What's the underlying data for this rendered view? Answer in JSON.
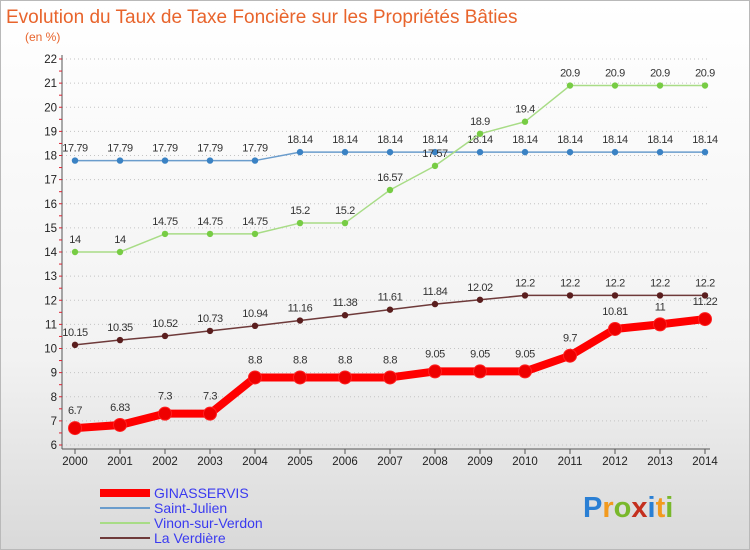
{
  "chart_data": {
    "type": "line",
    "title": "Evolution du Taux de Taxe Foncière sur les Propriétés Bâties",
    "subtitle": "(en %)",
    "categories": [
      "2000",
      "2001",
      "2002",
      "2003",
      "2004",
      "2005",
      "2006",
      "2007",
      "2008",
      "2009",
      "2010",
      "2011",
      "2012",
      "2013",
      "2014"
    ],
    "y_ticks": [
      "6",
      "7",
      "8",
      "9",
      "10",
      "11",
      "12",
      "13",
      "14",
      "15",
      "16",
      "17",
      "18",
      "19",
      "20",
      "21",
      "22"
    ],
    "ylim": [
      6,
      22
    ],
    "grid": "horizontal dotted",
    "legend_position": "bottom-left",
    "series": [
      {
        "name": "Saint-Julien",
        "color": "#6a9ccc",
        "marker_color": "#3a82c4",
        "values": [
          17.79,
          17.79,
          17.79,
          17.79,
          17.79,
          18.14,
          18.14,
          18.14,
          18.14,
          18.14,
          18.14,
          18.14,
          18.14,
          18.14,
          18.14
        ],
        "labels": [
          "17.79",
          "17.79",
          "17.79",
          "17.79",
          "17.79",
          "18.14",
          "18.14",
          "18.14",
          "18.14",
          "18.14",
          "18.14",
          "18.14",
          "18.14",
          "18.14",
          "18.14"
        ]
      },
      {
        "name": "Vinon-sur-Verdon",
        "color": "#a8dc86",
        "marker_color": "#77cc44",
        "values": [
          14,
          14,
          14.75,
          14.75,
          14.75,
          15.2,
          15.2,
          16.57,
          17.57,
          18.9,
          19.4,
          20.9,
          20.9,
          20.9,
          20.9
        ],
        "labels": [
          "14",
          "14",
          "14.75",
          "14.75",
          "14.75",
          "15.2",
          "15.2",
          "16.57",
          "17.57",
          "18.9",
          "19.4",
          "20.9",
          "20.9",
          "20.9",
          "20.9"
        ]
      },
      {
        "name": "La Verdière",
        "color": "#6e3a3a",
        "marker_color": "#5a1e1e",
        "values": [
          10.15,
          10.35,
          10.52,
          10.73,
          10.94,
          11.16,
          11.38,
          11.61,
          11.84,
          12.02,
          12.2,
          12.2,
          12.2,
          12.2,
          12.2
        ],
        "labels": [
          "10.15",
          "10.35",
          "10.52",
          "10.73",
          "10.94",
          "11.16",
          "11.38",
          "11.61",
          "11.84",
          "12.02",
          "12.2",
          "12.2",
          "12.2",
          "12.2",
          "12.2"
        ]
      },
      {
        "name": "GINASSERVIS",
        "color": "#ff0000",
        "marker_color": "#ee0000",
        "values": [
          6.7,
          6.83,
          7.3,
          7.3,
          8.8,
          8.8,
          8.8,
          8.8,
          9.05,
          9.05,
          9.05,
          9.7,
          10.81,
          11,
          11.22
        ],
        "labels": [
          "6.7",
          "6.83",
          "7.3",
          "7.3",
          "8.8",
          "8.8",
          "8.8",
          "8.8",
          "9.05",
          "9.05",
          "9.05",
          "9.7",
          "10.81",
          "11",
          "11.22"
        ]
      }
    ],
    "legend_order": [
      "GINASSERVIS",
      "Saint-Julien",
      "Vinon-sur-Verdon",
      "La Verdière"
    ]
  },
  "logo": {
    "letters": [
      "P",
      "r",
      "o",
      "x",
      "i",
      "t",
      "i"
    ],
    "colors": [
      "#2a7fd4",
      "#f29a1e",
      "#79b82c",
      "#c4301f",
      "#2a7fd4",
      "#f29a1e",
      "#79b82c"
    ]
  }
}
